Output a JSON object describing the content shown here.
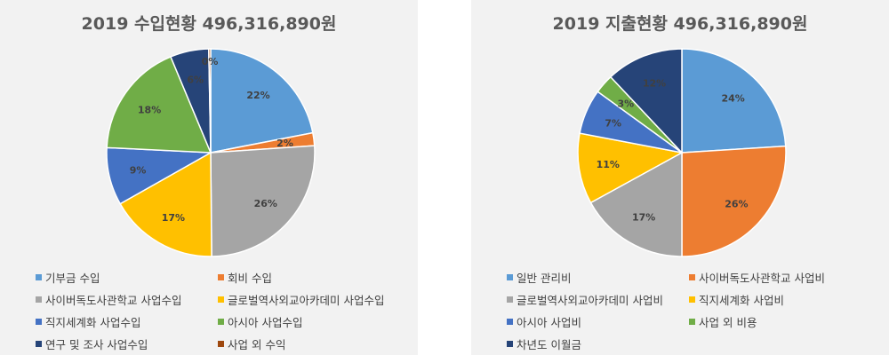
{
  "colors": {
    "blue": "#5b9bd5",
    "orange": "#ed7d31",
    "gray": "#a5a5a5",
    "gold": "#ffc000",
    "royal": "#4472c4",
    "green": "#70ad47",
    "navy": "#264478",
    "brown": "#9e480e"
  },
  "chart_data": [
    {
      "type": "pie",
      "title": "2019 수입현황 496,316,890원",
      "legend_position": "bottom",
      "slices": [
        {
          "label": "기부금 수입",
          "value": 22,
          "data_label": "22%",
          "color": "#5b9bd5"
        },
        {
          "label": "회비 수입",
          "value": 2,
          "data_label": "2%",
          "color": "#ed7d31"
        },
        {
          "label": "사이버독도사관학교 사업수입",
          "value": 26,
          "data_label": "26%",
          "color": "#a5a5a5"
        },
        {
          "label": "글로벌역사외교아카데미 사업수입",
          "value": 17,
          "data_label": "17%",
          "color": "#ffc000"
        },
        {
          "label": "직지세계화 사업수입",
          "value": 9,
          "data_label": "9%",
          "color": "#4472c4"
        },
        {
          "label": "아시아 사업수입",
          "value": 18,
          "data_label": "18%",
          "color": "#70ad47"
        },
        {
          "label": "연구 및 조사 사업수입",
          "value": 6,
          "data_label": "6%",
          "color": "#264478"
        },
        {
          "label": "사업 외 수익",
          "value": 0.3,
          "data_label": "0%",
          "color": "#9e480e"
        }
      ]
    },
    {
      "type": "pie",
      "title": "2019 지출현황 496,316,890원",
      "legend_position": "bottom",
      "slices": [
        {
          "label": "일반 관리비",
          "value": 24,
          "data_label": "24%",
          "color": "#5b9bd5"
        },
        {
          "label": "사이버독도사관학교 사업비",
          "value": 26,
          "data_label": "26%",
          "color": "#ed7d31"
        },
        {
          "label": "글로벌역사외교아카데미 사업비",
          "value": 17,
          "data_label": "17%",
          "color": "#a5a5a5"
        },
        {
          "label": "직지세계화 사업비",
          "value": 11,
          "data_label": "11%",
          "color": "#ffc000"
        },
        {
          "label": "아시아 사업비",
          "value": 7,
          "data_label": "7%",
          "color": "#4472c4"
        },
        {
          "label": "사업 외 비용",
          "value": 3,
          "data_label": "3%",
          "color": "#70ad47"
        },
        {
          "label": "차년도 이월금",
          "value": 12,
          "data_label": "12%",
          "color": "#264478"
        }
      ]
    }
  ]
}
